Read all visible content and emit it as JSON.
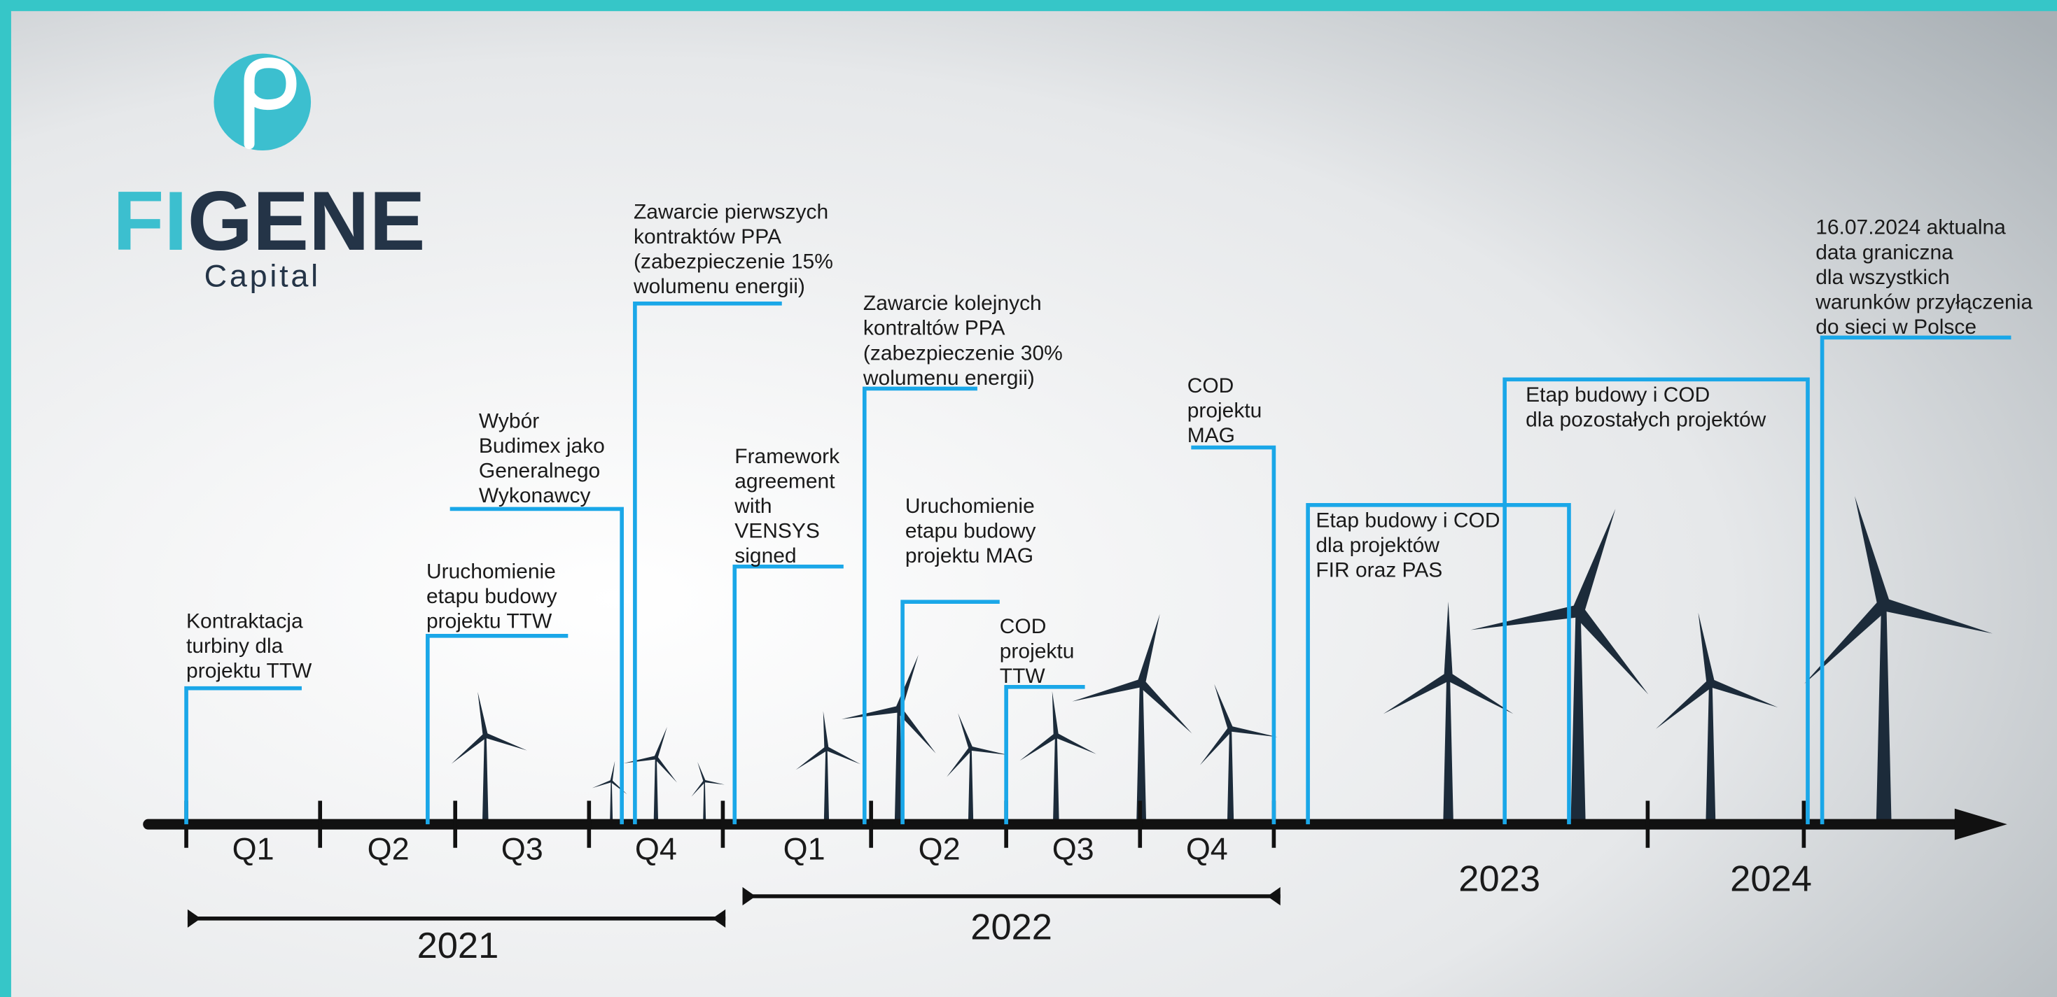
{
  "logo": {
    "name_part1": "FI",
    "name_part2": "GENE",
    "tagline": "Capital"
  },
  "timeline": {
    "quarters_2021": [
      "Q1",
      "Q2",
      "Q3",
      "Q4"
    ],
    "quarters_2022": [
      "Q1",
      "Q2",
      "Q3",
      "Q4"
    ],
    "years": [
      "2021",
      "2022",
      "2023",
      "2024"
    ]
  },
  "milestones": [
    {
      "lines": [
        "Kontraktacja",
        "turbiny dla",
        "projektu TTW"
      ]
    },
    {
      "lines": [
        "Uruchomienie",
        "etapu budowy",
        "projektu TTW"
      ]
    },
    {
      "lines": [
        "Wybór",
        "Budimex jako",
        "Generalnego",
        "Wykonawcy"
      ]
    },
    {
      "lines": [
        "Zawarcie pierwszych",
        "kontraktów PPA",
        "(zabezpieczenie 15%",
        "wolumenu energii)"
      ]
    },
    {
      "lines": [
        "Framework",
        "agreement",
        "with",
        "VENSYS",
        "signed"
      ]
    },
    {
      "lines": [
        "Zawarcie kolejnych",
        "kontraltów PPA",
        "(zabezpieczenie 30%",
        "wolumenu energii)"
      ]
    },
    {
      "lines": [
        "Uruchomienie",
        "etapu budowy",
        "projektu MAG"
      ]
    },
    {
      "lines": [
        "COD",
        "projektu",
        "TTW"
      ]
    },
    {
      "lines": [
        "COD",
        "projektu",
        "MAG"
      ]
    },
    {
      "lines": [
        "Etap budowy i COD",
        "dla projektów",
        "FIR oraz PAS"
      ]
    },
    {
      "lines": [
        "Etap budowy i COD",
        "dla pozostałych projektów"
      ]
    },
    {
      "lines": [
        "16.07.2024 aktualna",
        "data graniczna",
        "dla wszystkich",
        "warunków przyłączenia",
        "do sieci w Polsce"
      ]
    }
  ]
}
